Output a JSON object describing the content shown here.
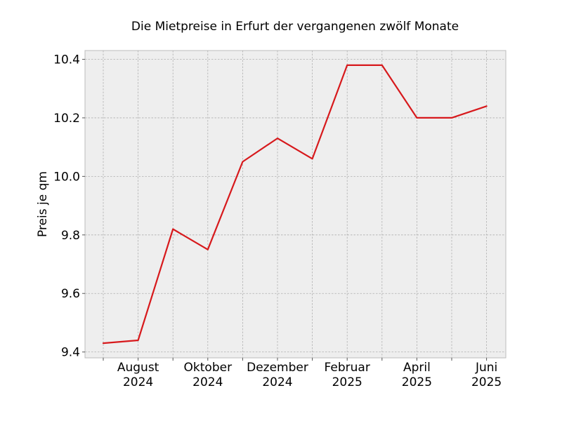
{
  "chart_data": {
    "type": "line",
    "title": "Die Mietpreise in Erfurt der vergangenen zwölf Monate",
    "xlabel": "",
    "ylabel": "Preis je qm",
    "x": [
      "2024-07",
      "2024-08",
      "2024-09",
      "2024-10",
      "2024-11",
      "2024-12",
      "2025-01",
      "2025-02",
      "2025-03",
      "2025-04",
      "2025-05",
      "2025-06"
    ],
    "series": [
      {
        "values": [
          9.43,
          9.44,
          9.82,
          9.75,
          10.05,
          10.13,
          10.06,
          10.38,
          10.38,
          10.2,
          10.2,
          10.24
        ],
        "color": "#d7191c"
      }
    ],
    "x_tick_labels": [
      {
        "x": "2024-08",
        "line1": "August",
        "line2": "2024"
      },
      {
        "x": "2024-10",
        "line1": "Oktober",
        "line2": "2024"
      },
      {
        "x": "2024-12",
        "line1": "Dezember",
        "line2": "2024"
      },
      {
        "x": "2025-02",
        "line1": "Februar",
        "line2": "2025"
      },
      {
        "x": "2025-04",
        "line1": "April",
        "line2": "2025"
      },
      {
        "x": "2025-06",
        "line1": "Juni",
        "line2": "2025"
      }
    ],
    "y_ticks": [
      9.4,
      9.6,
      9.8,
      10.0,
      10.2,
      10.4
    ],
    "y_tick_labels": [
      "9.4",
      "9.6",
      "9.8",
      "10.0",
      "10.2",
      "10.4"
    ],
    "ylim": [
      9.38,
      10.43
    ],
    "grid": true,
    "legend": "none",
    "colors": {
      "plot_background": "#eeeeee",
      "grid": "#b0b0b0",
      "frame": "#bcbcbc"
    }
  }
}
